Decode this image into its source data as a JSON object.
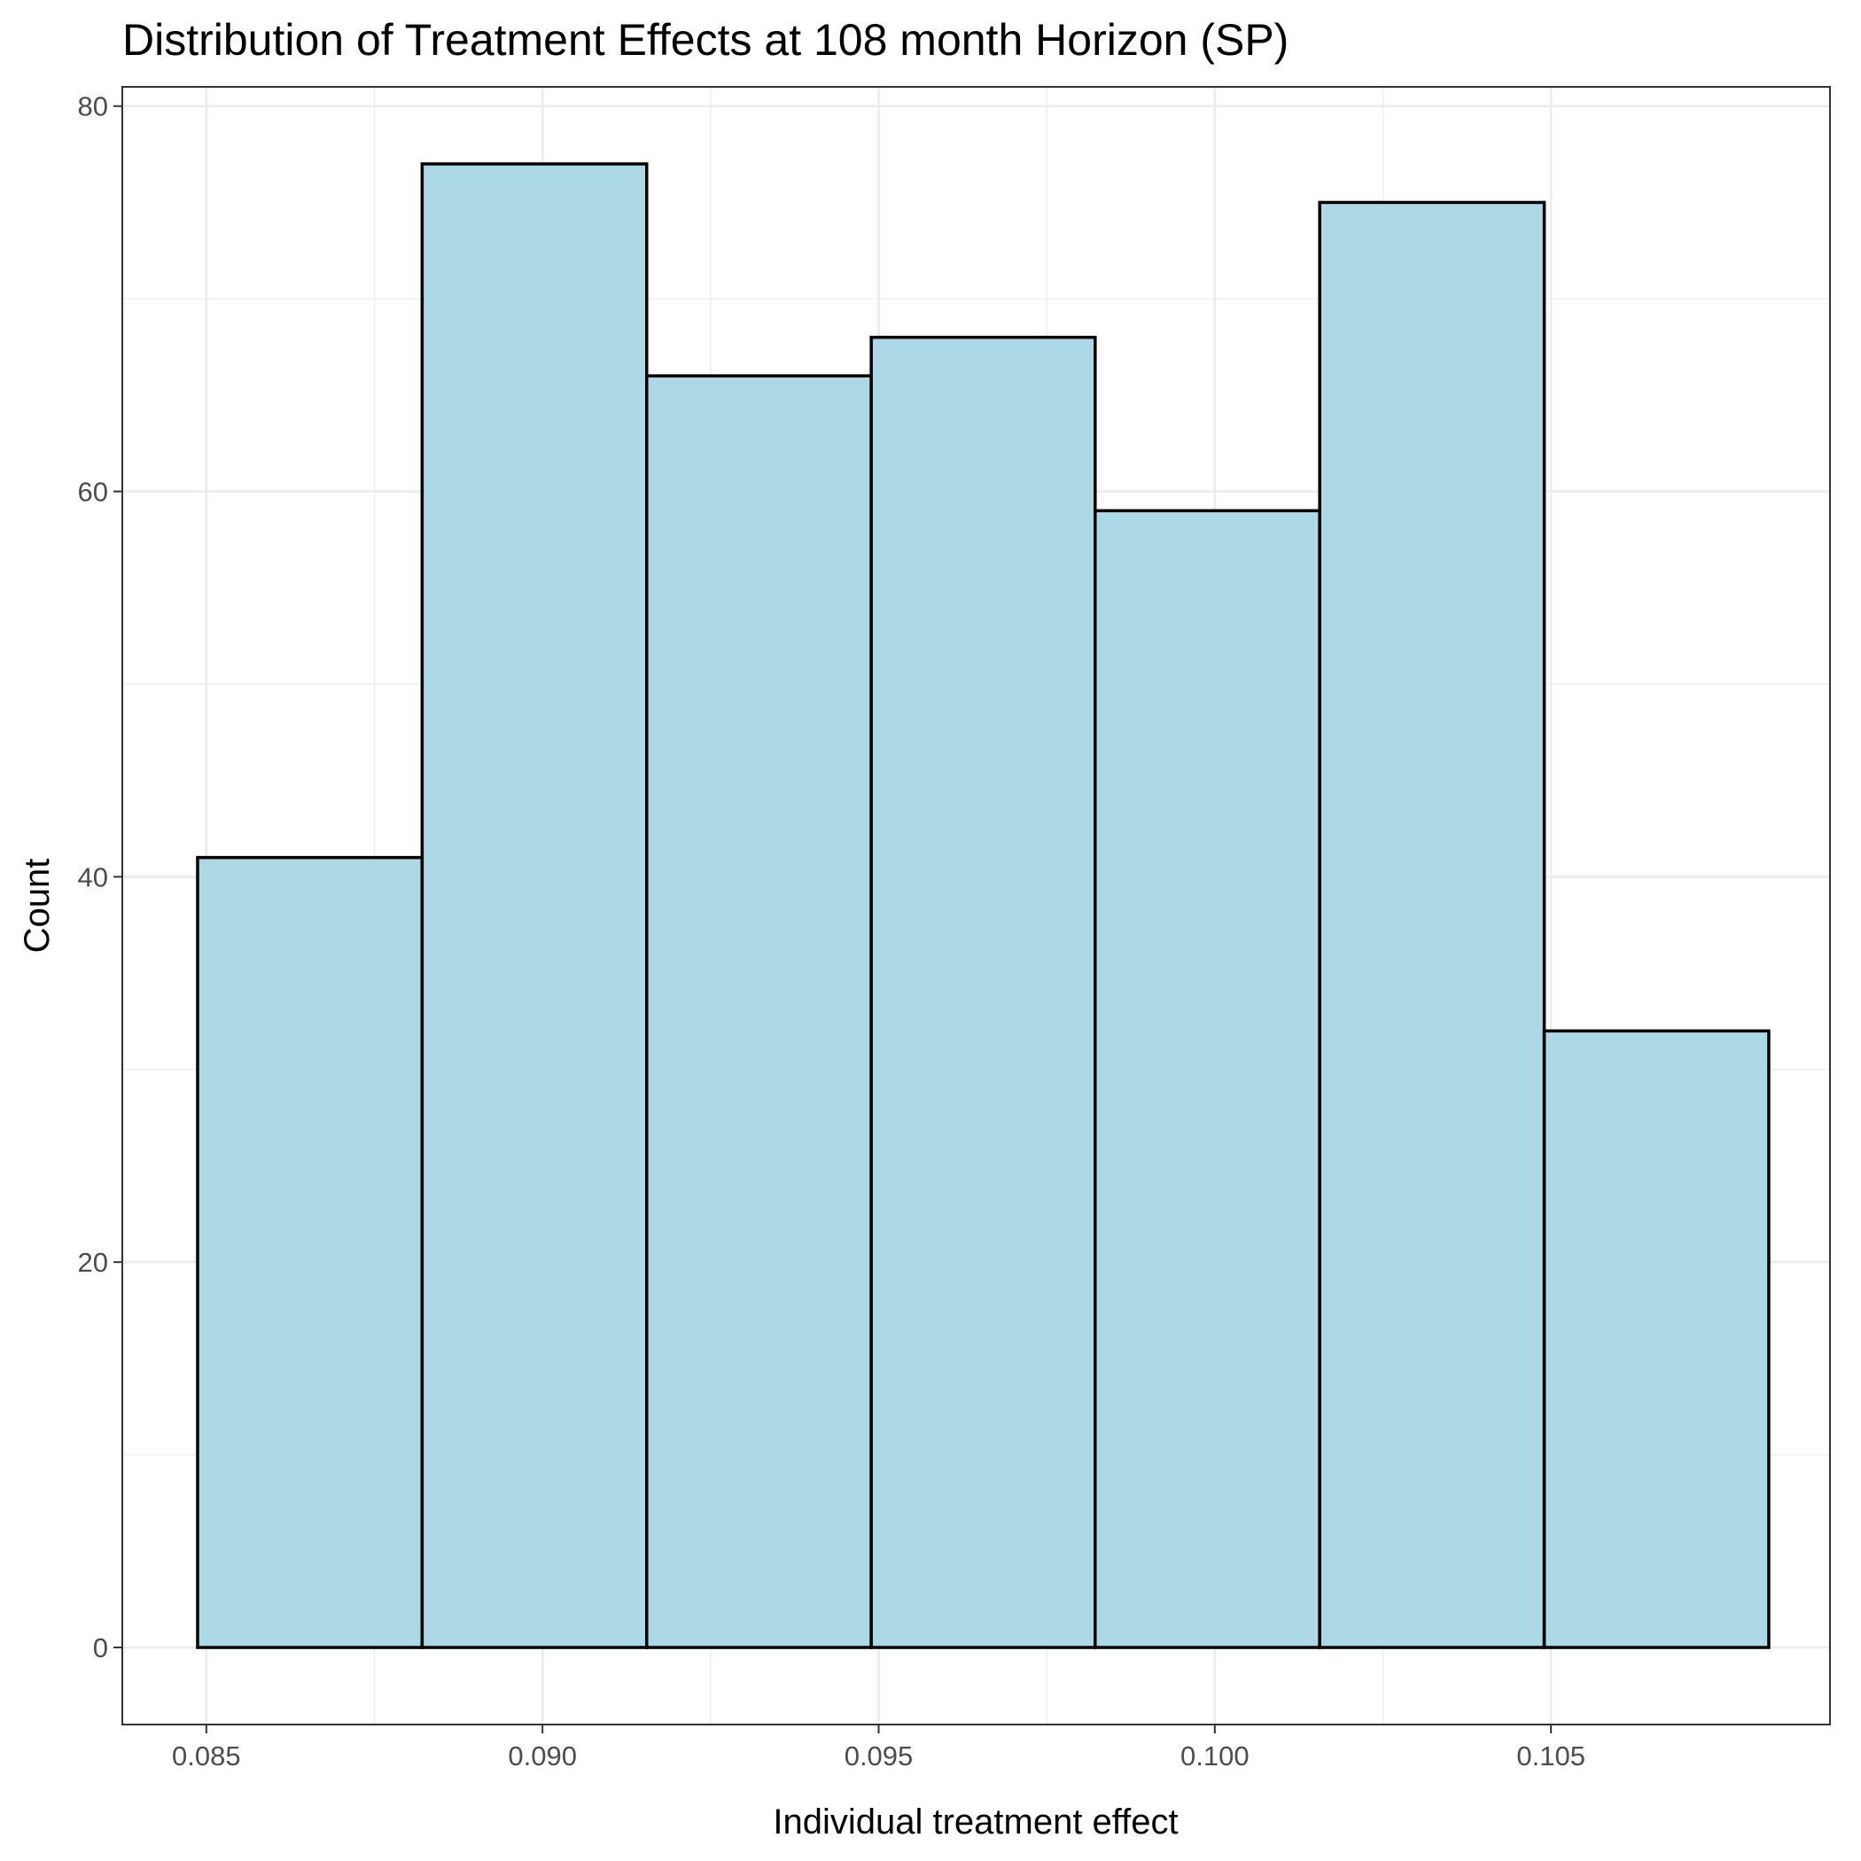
{
  "chart_data": {
    "type": "bar",
    "subtype": "histogram",
    "title": "Distribution of Treatment Effects at 108 month Horizon (SP)",
    "xlabel": "Individual treatment effect",
    "ylabel": "Count",
    "xlim": [
      0.08375,
      0.10915
    ],
    "ylim": [
      -4,
      81
    ],
    "x_ticks": [
      0.085,
      0.09,
      0.095,
      0.1,
      0.105
    ],
    "x_tick_labels": [
      "0.085",
      "0.090",
      "0.095",
      "0.100",
      "0.105"
    ],
    "y_ticks": [
      0,
      20,
      40,
      60,
      80
    ],
    "y_tick_labels": [
      "0",
      "20",
      "40",
      "60",
      "80"
    ],
    "bins": [
      {
        "x0": 0.08487,
        "x1": 0.08821,
        "count": 41
      },
      {
        "x0": 0.08821,
        "x1": 0.09155,
        "count": 77
      },
      {
        "x0": 0.09155,
        "x1": 0.09489,
        "count": 66
      },
      {
        "x0": 0.09489,
        "x1": 0.09822,
        "count": 68
      },
      {
        "x0": 0.09822,
        "x1": 0.10156,
        "count": 59
      },
      {
        "x0": 0.10156,
        "x1": 0.1049,
        "count": 75
      },
      {
        "x0": 0.1049,
        "x1": 0.10824,
        "count": 32
      }
    ],
    "grid": true,
    "legend": "none",
    "colors": {
      "bar_fill": "#add8e6",
      "bar_stroke": "#000000",
      "grid": "#ebebeb",
      "panel_border": "#333333",
      "tick_text": "#4d4d4d"
    }
  }
}
